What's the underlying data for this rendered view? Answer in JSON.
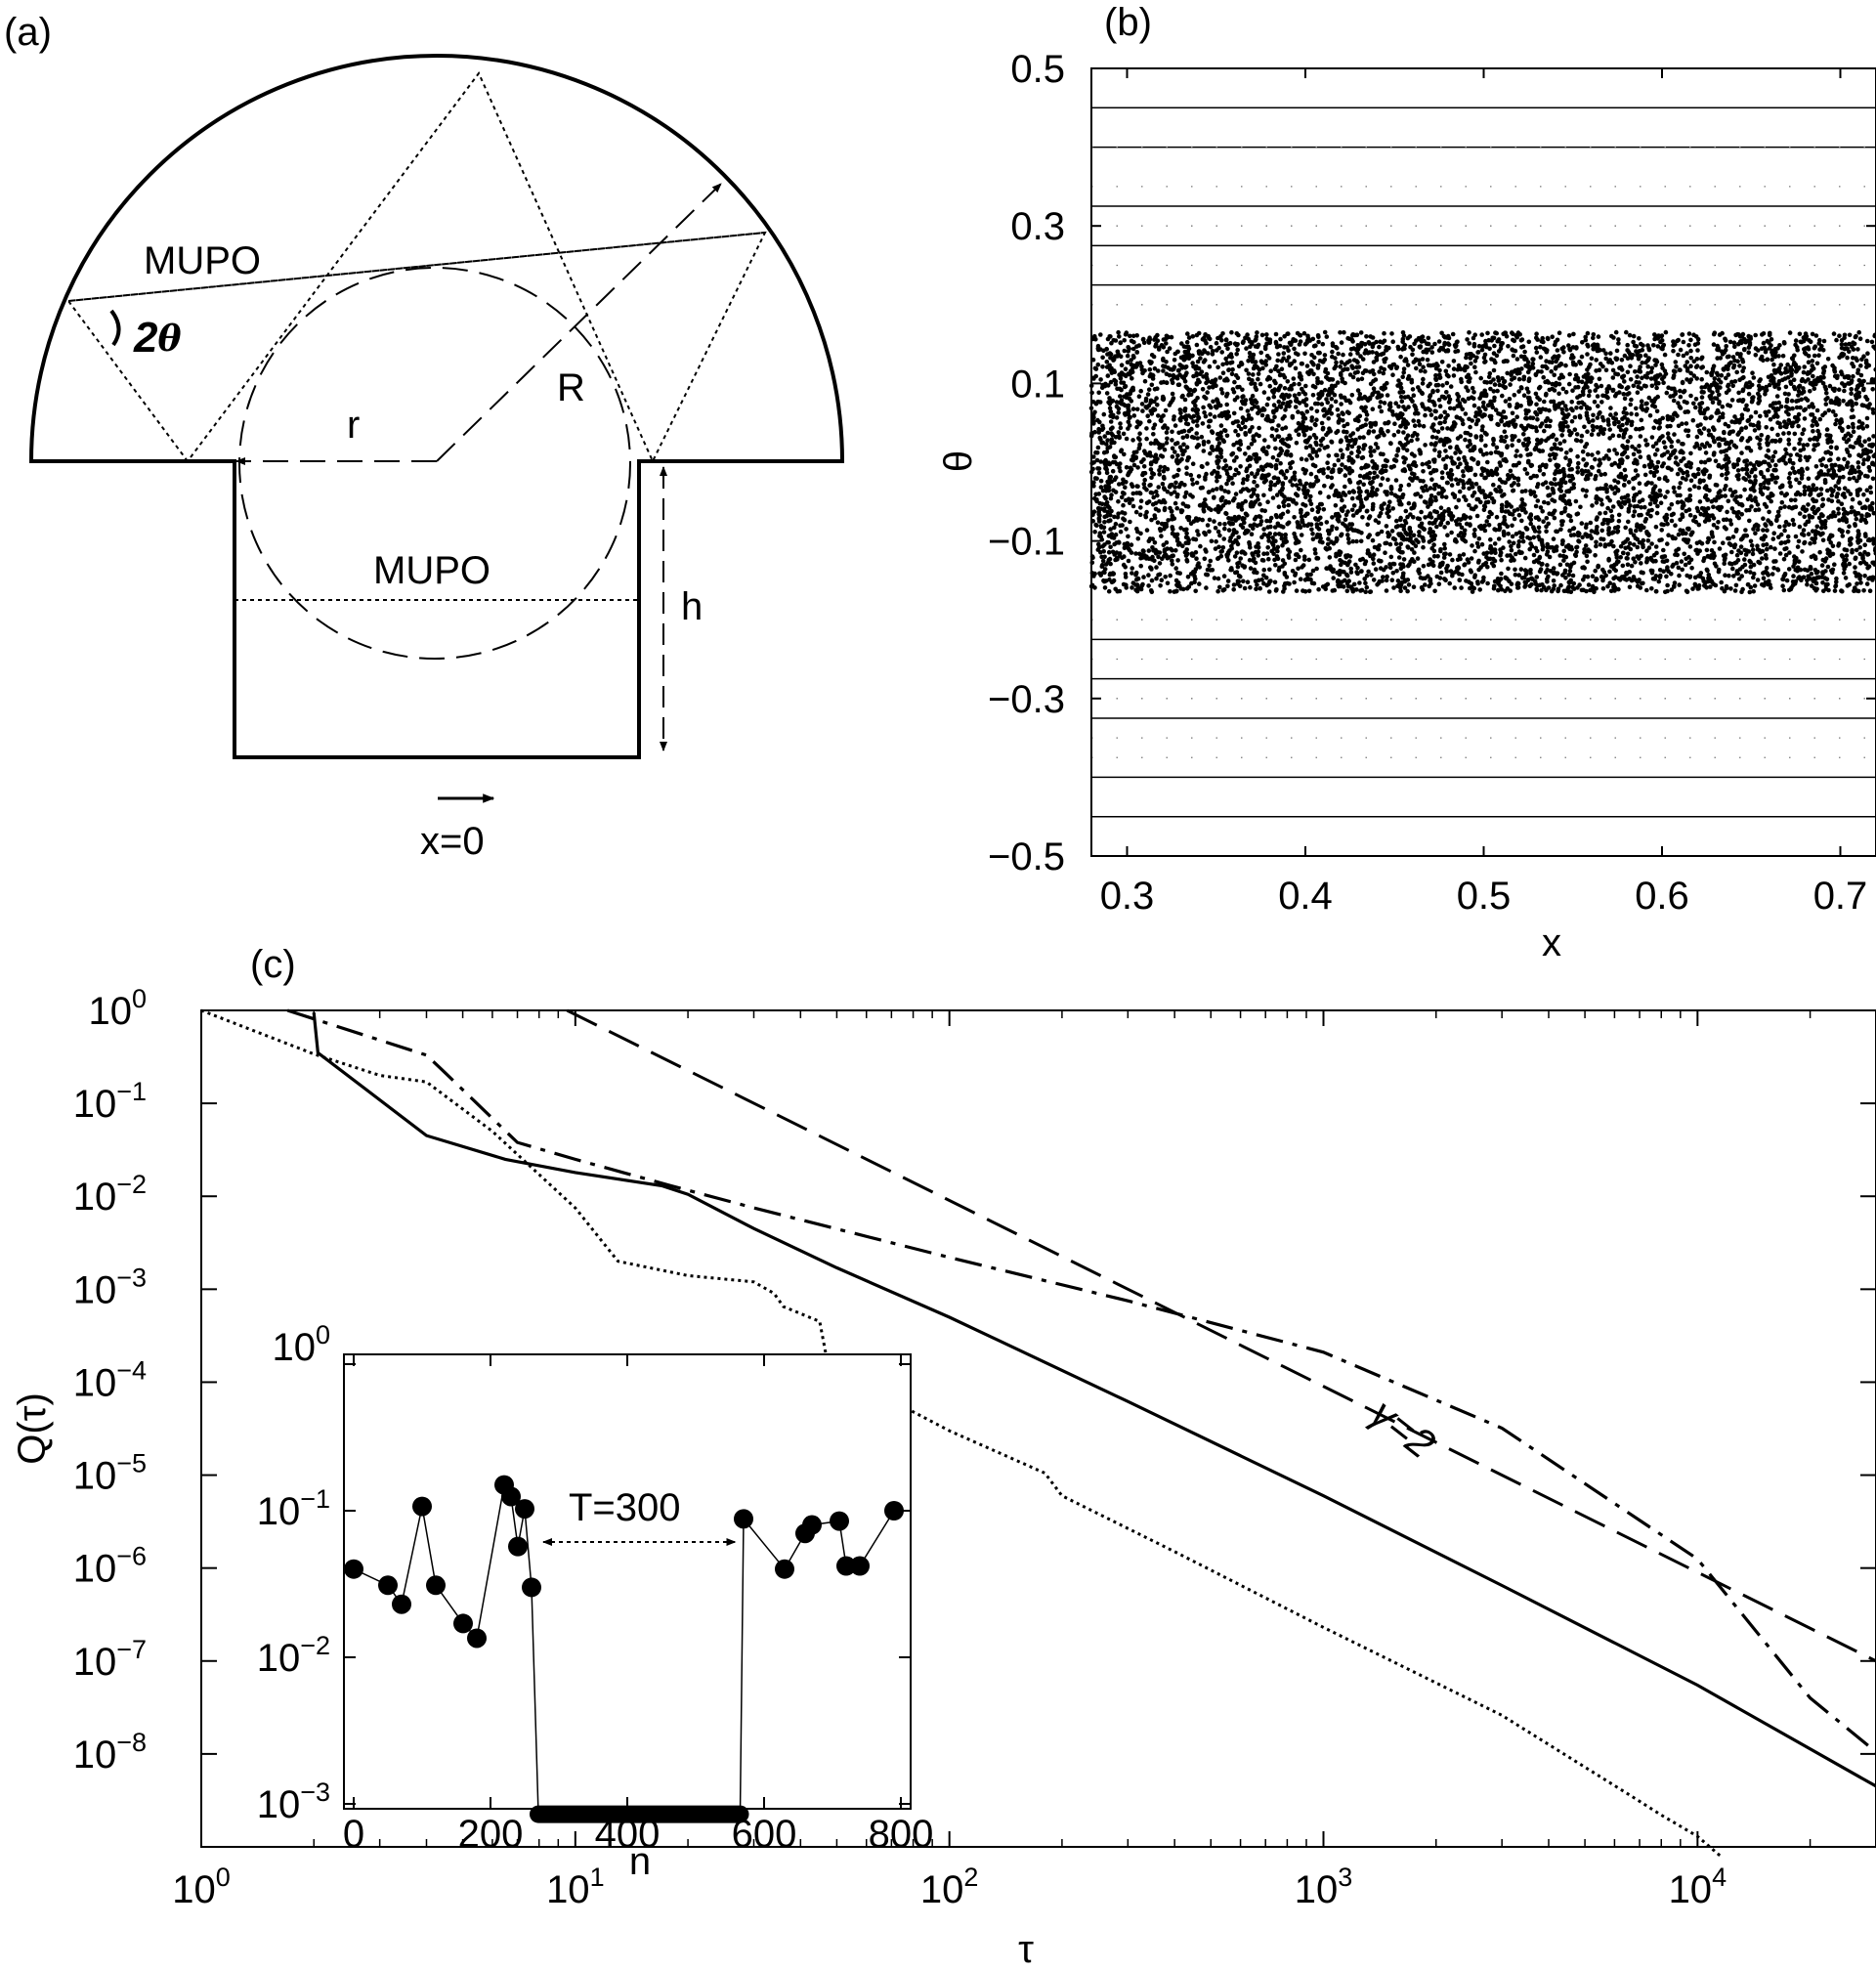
{
  "panel_a": {
    "label": "(a)",
    "mupo_top": "MUPO",
    "mupo_bottom": "MUPO",
    "angle_label": "2",
    "angle_symbol": "θ",
    "radius_big": "R",
    "radius_small": "r",
    "height": "h",
    "origin": "x=0"
  },
  "panel_b": {
    "label": "(b)"
  },
  "panel_c": {
    "label": "(c)",
    "slope_label": "γ=2"
  },
  "chart_data": [
    {
      "type": "scatter",
      "xlabel": "x",
      "ylabel": "θ",
      "xlim": [
        0.28,
        0.72
      ],
      "ylim": [
        -0.5,
        0.5
      ],
      "xticks": [
        0.3,
        0.4,
        0.5,
        0.6,
        0.7
      ],
      "xtick_labels": [
        "0.3",
        "0.4",
        "0.5",
        "0.6",
        "0.7"
      ],
      "yticks": [
        -0.5,
        -0.3,
        -0.1,
        0.1,
        0.3,
        0.5
      ],
      "ytick_labels": [
        "−0.5",
        "−0.3",
        "−0.1",
        "0.1",
        "0.3",
        "0.5"
      ],
      "chaotic_band": [
        -0.165,
        0.165
      ],
      "regular_lines": [
        -0.45,
        -0.4,
        -0.325,
        -0.275,
        -0.225,
        0.225,
        0.275,
        0.325,
        0.4,
        0.45
      ],
      "dotted_lines": [
        -0.375,
        -0.35,
        -0.3,
        -0.25,
        -0.2,
        0.2,
        0.25,
        0.3,
        0.35,
        0.4
      ]
    },
    {
      "type": "line",
      "xlabel": "τ",
      "ylabel": "Q(τ)",
      "xscale": "log",
      "yscale": "log",
      "xlim": [
        1,
        30000
      ],
      "ylim": [
        1e-09,
        1
      ],
      "xtick_labels": [
        [
          "10",
          "0"
        ],
        [
          "10",
          "1"
        ],
        [
          "10",
          "2"
        ],
        [
          "10",
          "3"
        ],
        [
          "10",
          "4"
        ]
      ],
      "ytick_labels": [
        [
          "10",
          "0"
        ],
        [
          "10",
          "−1"
        ],
        [
          "10",
          "−2"
        ],
        [
          "10",
          "−3"
        ],
        [
          "10",
          "−4"
        ],
        [
          "10",
          "−5"
        ],
        [
          "10",
          "−6"
        ],
        [
          "10",
          "−7"
        ],
        [
          "10",
          "−8"
        ]
      ],
      "series": [
        {
          "style": "solid",
          "x": [
            2.0,
            2.05,
            4.0,
            6.5,
            10,
            17,
            20,
            30,
            50,
            100,
            300,
            1000,
            3000,
            10000,
            30000
          ],
          "y": [
            0.95,
            0.35,
            0.045,
            0.025,
            0.018,
            0.013,
            0.0105,
            0.0045,
            0.0017,
            0.0005,
            6.2e-05,
            6e-06,
            6.5e-07,
            5.5e-08,
            4.5e-09
          ]
        },
        {
          "style": "dotted",
          "x": [
            1.0,
            2.0,
            3.0,
            4.0,
            6.0,
            10,
            13,
            20,
            30,
            34,
            36,
            45,
            47,
            60,
            80,
            100,
            180,
            200,
            400,
            1000,
            3000,
            7000,
            8000,
            10000,
            11500
          ],
          "y": [
            1.0,
            0.34,
            0.2,
            0.17,
            0.05,
            0.0075,
            0.002,
            0.0014,
            0.0012,
            0.0009,
            0.00065,
            0.00045,
            0.00018,
            9e-05,
            4.8e-05,
            3e-05,
            1.05e-05,
            6e-06,
            1.5e-06,
            2.3e-07,
            2.6e-08,
            3.1e-09,
            2.2e-09,
            1.3e-09,
            8e-10
          ]
        },
        {
          "style": "dashdot",
          "x": [
            1.7,
            4.0,
            4.4,
            7.0,
            10,
            18,
            30,
            100,
            300,
            1000,
            3000,
            10000,
            20000,
            30000
          ],
          "y": [
            1.0,
            0.33,
            0.23,
            0.038,
            0.025,
            0.013,
            0.0075,
            0.0022,
            0.00075,
            0.00021,
            3.2e-05,
            1.25e-06,
            4e-08,
            1.05e-08
          ]
        },
        {
          "style": "dashed",
          "x": [
            9.5,
            30000
          ],
          "y": [
            1.0,
            1e-07
          ]
        }
      ]
    },
    {
      "type": "scatter",
      "xlabel": "n",
      "ylabel": "",
      "xscale": "linear",
      "yscale": "log",
      "xlim": [
        0,
        800
      ],
      "ylim": [
        0.0005,
        1
      ],
      "xtick_labels": [
        "0",
        "200",
        "400",
        "600",
        "800"
      ],
      "ytick_labels": [
        [
          "10",
          "0"
        ],
        [
          "10",
          "−1"
        ],
        [
          "10",
          "−2"
        ],
        [
          "10",
          "−3"
        ]
      ],
      "x": [
        0,
        50,
        70,
        100,
        120,
        160,
        180,
        220,
        230,
        240,
        250,
        260,
        570,
        630,
        660,
        670,
        710,
        720,
        740,
        790
      ],
      "y": [
        0.04,
        0.031,
        0.023,
        0.107,
        0.031,
        0.017,
        0.0135,
        0.15,
        0.125,
        0.057,
        0.103,
        0.03,
        0.088,
        0.04,
        0.07,
        0.08,
        0.085,
        0.042,
        0.042,
        0.1
      ],
      "gap_level": 0.00085,
      "gap_range": [
        270,
        565
      ],
      "annotation": "T=300"
    }
  ]
}
